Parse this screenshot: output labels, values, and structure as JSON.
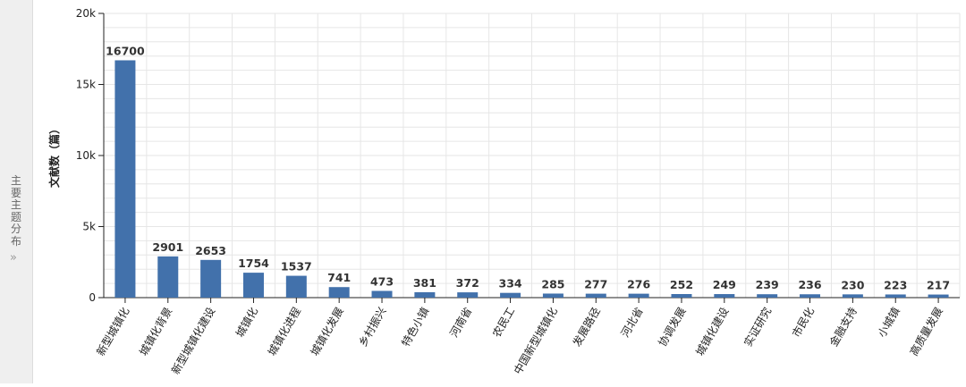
{
  "sidebar": {
    "label": "主要主题分布",
    "arrow_icon": "double-chevron-right-icon"
  },
  "colors": {
    "bar": "#4271ab",
    "axis": "#222222",
    "grid": "#e6e6e6",
    "label": "#333333",
    "sidebar_bg": "#efefef"
  },
  "chart_data": {
    "type": "bar",
    "title": "",
    "xlabel": "",
    "ylabel": "文献数（篇）",
    "ylim": [
      0,
      20000
    ],
    "yticks": [
      0,
      5000,
      10000,
      15000,
      20000
    ],
    "ytick_labels": [
      "0",
      "5k",
      "10k",
      "15k",
      "20k"
    ],
    "grid": true,
    "categories": [
      "新型城镇化",
      "城镇化背景",
      "新型城镇化建设",
      "城镇化",
      "城镇化进程",
      "城镇化发展",
      "乡村振兴",
      "特色小镇",
      "河南省",
      "农民工",
      "中国新型城镇化",
      "发展路径",
      "河北省",
      "协调发展",
      "城镇化建设",
      "实证研究",
      "市民化",
      "金融支持",
      "小城镇",
      "高质量发展"
    ],
    "values": [
      16700,
      2901,
      2653,
      1754,
      1537,
      741,
      473,
      381,
      372,
      334,
      285,
      277,
      276,
      252,
      249,
      239,
      236,
      230,
      223,
      217
    ]
  }
}
